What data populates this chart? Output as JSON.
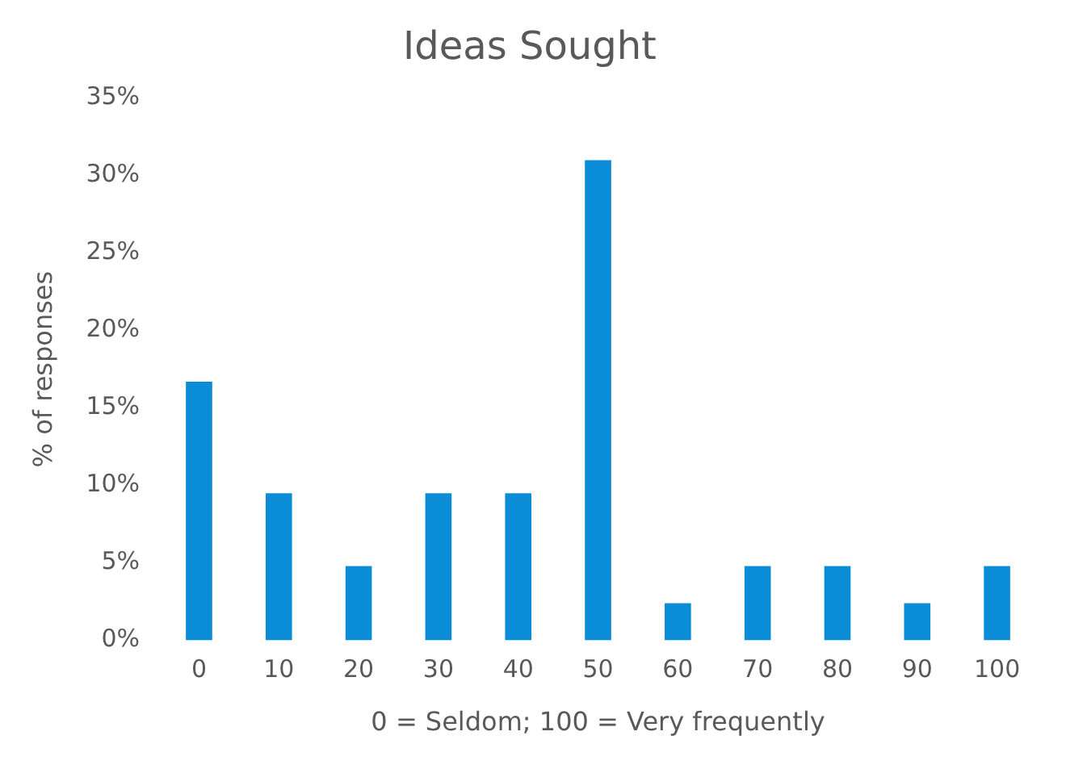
{
  "chart_data": {
    "type": "bar",
    "title": "Ideas Sought",
    "xlabel": "0 = Seldom; 100 = Very frequently",
    "ylabel": "% of responses",
    "categories": [
      "0",
      "10",
      "20",
      "30",
      "40",
      "50",
      "60",
      "70",
      "80",
      "90",
      "100"
    ],
    "values": [
      16.7,
      9.5,
      4.8,
      9.5,
      9.5,
      31.0,
      2.4,
      4.8,
      4.8,
      2.4,
      4.8
    ],
    "color": "#0a8cd6",
    "ylim": [
      0,
      35
    ],
    "yticks": [
      {
        "value": 0,
        "label": "0%"
      },
      {
        "value": 5,
        "label": "5%"
      },
      {
        "value": 10,
        "label": "10%"
      },
      {
        "value": 15,
        "label": "15%"
      },
      {
        "value": 20,
        "label": "20%"
      },
      {
        "value": 25,
        "label": "25%"
      },
      {
        "value": 30,
        "label": "30%"
      },
      {
        "value": 35,
        "label": "35%"
      }
    ],
    "grid": false,
    "legend": false
  }
}
